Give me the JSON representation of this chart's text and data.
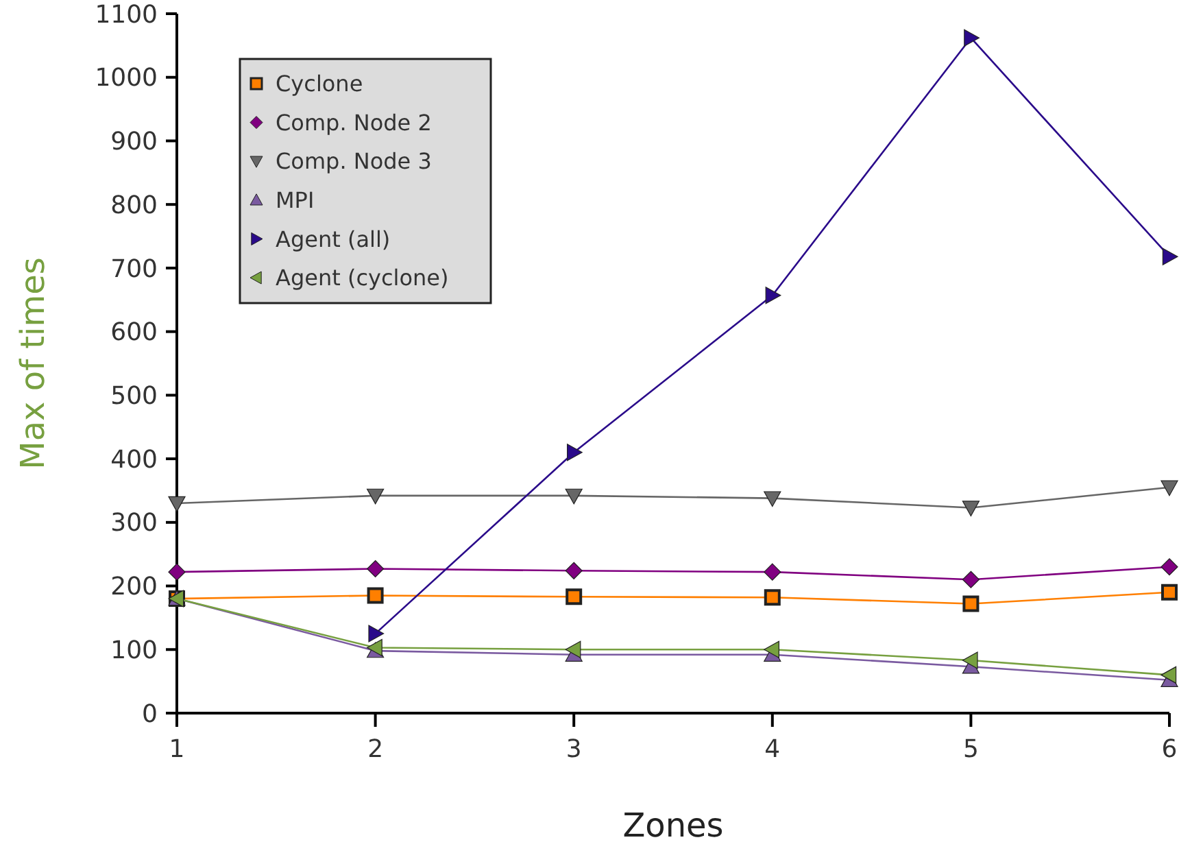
{
  "chart_data": {
    "type": "line",
    "xlabel": "Zones",
    "ylabel": "Max of times",
    "x": [
      1,
      2,
      3,
      4,
      5,
      6
    ],
    "xlim": [
      1,
      6
    ],
    "xticks": [
      1,
      2,
      3,
      4,
      5,
      6
    ],
    "ylim": [
      0,
      1100
    ],
    "yticks": [
      0,
      100,
      200,
      300,
      400,
      500,
      600,
      700,
      800,
      900,
      1000,
      1100
    ],
    "grid": false,
    "legend": "top left",
    "series": [
      {
        "name": "Cyclone",
        "color": "#ff7f00",
        "marker": "square",
        "values": [
          180,
          185,
          183,
          182,
          172,
          190
        ]
      },
      {
        "name": "Comp. Node 2",
        "color": "#800080",
        "marker": "diamond",
        "values": [
          222,
          227,
          224,
          222,
          210,
          230
        ]
      },
      {
        "name": "Comp. Node 3",
        "color": "#666666",
        "marker": "triangle-down",
        "values": [
          330,
          342,
          342,
          338,
          323,
          355
        ]
      },
      {
        "name": "MPI",
        "color": "#7a5aa0",
        "marker": "triangle",
        "values": [
          180,
          98,
          92,
          92,
          73,
          52
        ]
      },
      {
        "name": "Agent (all)",
        "color": "#2a0a8a",
        "marker": "triangle-right",
        "values": [
          null,
          125,
          410,
          657,
          1062,
          718
        ]
      },
      {
        "name": "Agent (cyclone)",
        "color": "#77a040",
        "marker": "triangle-left",
        "values": [
          180,
          103,
          100,
          100,
          83,
          60
        ]
      }
    ]
  }
}
